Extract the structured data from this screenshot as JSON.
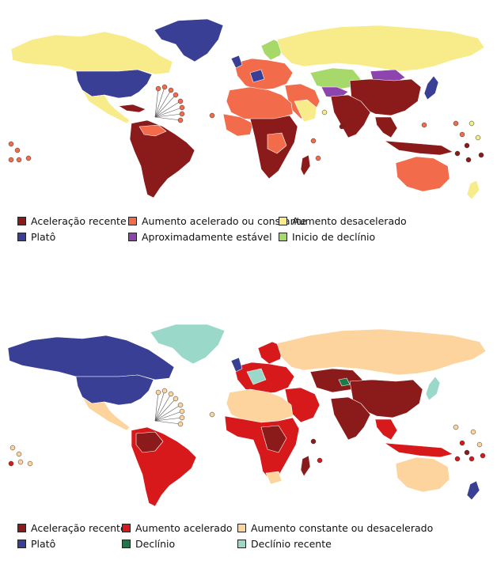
{
  "colors": {
    "aceleracao_recente": "#8b1a1a",
    "aumento_acelerado_constante": "#f26b4a",
    "aumento_desacelerado": "#f8ec8a",
    "plato": "#3a3f96",
    "aproximadamente_estavel": "#8e44ad",
    "inicio_declinio": "#a6d96a",
    "aumento_acelerado": "#d7191c",
    "aumento_constante_desacelerado": "#fdd49e",
    "declinio": "#1a7a4a",
    "declinio_recente": "#9ad9c9",
    "nodata": "#dcdcdc"
  },
  "map1": {
    "legend": [
      {
        "label": "Aceleração recente",
        "color": "#8b1a1a"
      },
      {
        "label": "Aumento acelerado ou constante",
        "color": "#f26b4a"
      },
      {
        "label": "Aumento desacelerado",
        "color": "#f8ec8a"
      },
      {
        "label": "Platô",
        "color": "#3a3f96"
      },
      {
        "label": "Aproximadamente estável",
        "color": "#8e44ad"
      },
      {
        "label": "Inicio de declínio",
        "color": "#a6d96a"
      }
    ]
  },
  "map2": {
    "legend": [
      {
        "label": "Aceleração recente",
        "color": "#8b1a1a"
      },
      {
        "label": "Aumento acelerado",
        "color": "#d7191c"
      },
      {
        "label": "Aumento constante ou desacelerado",
        "color": "#fdd49e"
      },
      {
        "label": "Platô",
        "color": "#3a3f96"
      },
      {
        "label": "Declínio",
        "color": "#1a7a4a"
      },
      {
        "label": "Declínio recente",
        "color": "#9ad9c9"
      }
    ]
  }
}
